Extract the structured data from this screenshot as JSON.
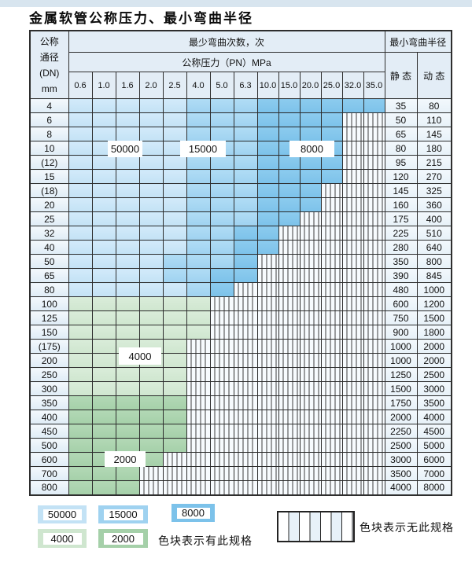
{
  "title": "金属软管公称压力、最小弯曲半径",
  "table": {
    "corner_header": [
      "公称",
      "通径",
      "(DN)",
      "mm"
    ],
    "bend_cycles_header": "最少弯曲次数，次",
    "bend_radius_header": "最小弯曲半径",
    "pressure_header": "公称压力（PN）MPa",
    "static_header": "静 态",
    "dynamic_header": "动 态",
    "pressures": [
      "0.6",
      "1.0",
      "1.6",
      "2.0",
      "2.5",
      "4.0",
      "5.0",
      "6.3",
      "10.0",
      "15.0",
      "20.0",
      "25.0",
      "32.0",
      "35.0"
    ],
    "cell_legend_key": {
      "a": "50000",
      "b": "15000",
      "c": "8000",
      "g4": "4000",
      "g2": "2000",
      "h": "无此规格"
    },
    "rows": [
      {
        "dn": "4",
        "cells": [
          "a",
          "a",
          "a",
          "a",
          "a",
          "b",
          "b",
          "b",
          "c",
          "c",
          "c",
          "c",
          "c",
          "c"
        ],
        "static": "35",
        "dynamic": "80"
      },
      {
        "dn": "6",
        "cells": [
          "a",
          "a",
          "a",
          "a",
          "a",
          "b",
          "b",
          "b",
          "c",
          "c",
          "c",
          "c",
          "h",
          "h"
        ],
        "static": "50",
        "dynamic": "110"
      },
      {
        "dn": "8",
        "cells": [
          "a",
          "a",
          "a",
          "a",
          "a",
          "b",
          "b",
          "b",
          "c",
          "c",
          "c",
          "c",
          "h",
          "h"
        ],
        "static": "65",
        "dynamic": "145"
      },
      {
        "dn": "10",
        "cells": [
          "a",
          "a",
          "a",
          "a",
          "a",
          "b",
          "b",
          "b",
          "c",
          "c",
          "c",
          "c",
          "h",
          "h"
        ],
        "static": "80",
        "dynamic": "180"
      },
      {
        "dn": "(12)",
        "cells": [
          "a",
          "a",
          "a",
          "a",
          "a",
          "b",
          "b",
          "b",
          "c",
          "c",
          "c",
          "c",
          "h",
          "h"
        ],
        "static": "95",
        "dynamic": "215"
      },
      {
        "dn": "15",
        "cells": [
          "a",
          "a",
          "a",
          "a",
          "a",
          "b",
          "b",
          "b",
          "c",
          "c",
          "c",
          "c",
          "h",
          "h"
        ],
        "static": "120",
        "dynamic": "270"
      },
      {
        "dn": "(18)",
        "cells": [
          "a",
          "a",
          "a",
          "a",
          "a",
          "b",
          "b",
          "b",
          "c",
          "c",
          "c",
          "h",
          "h",
          "h"
        ],
        "static": "145",
        "dynamic": "325"
      },
      {
        "dn": "20",
        "cells": [
          "a",
          "a",
          "a",
          "a",
          "a",
          "b",
          "b",
          "b",
          "c",
          "c",
          "c",
          "h",
          "h",
          "h"
        ],
        "static": "160",
        "dynamic": "360"
      },
      {
        "dn": "25",
        "cells": [
          "a",
          "a",
          "a",
          "a",
          "a",
          "b",
          "b",
          "b",
          "c",
          "c",
          "h",
          "h",
          "h",
          "h"
        ],
        "static": "175",
        "dynamic": "400"
      },
      {
        "dn": "32",
        "cells": [
          "a",
          "a",
          "a",
          "a",
          "a",
          "b",
          "b",
          "c",
          "c",
          "h",
          "h",
          "h",
          "h",
          "h"
        ],
        "static": "225",
        "dynamic": "510"
      },
      {
        "dn": "40",
        "cells": [
          "a",
          "a",
          "a",
          "a",
          "a",
          "b",
          "b",
          "c",
          "c",
          "h",
          "h",
          "h",
          "h",
          "h"
        ],
        "static": "280",
        "dynamic": "640"
      },
      {
        "dn": "50",
        "cells": [
          "a",
          "a",
          "a",
          "a",
          "b",
          "b",
          "b",
          "c",
          "h",
          "h",
          "h",
          "h",
          "h",
          "h"
        ],
        "static": "350",
        "dynamic": "800"
      },
      {
        "dn": "65",
        "cells": [
          "a",
          "a",
          "a",
          "a",
          "b",
          "b",
          "c",
          "c",
          "h",
          "h",
          "h",
          "h",
          "h",
          "h"
        ],
        "static": "390",
        "dynamic": "845"
      },
      {
        "dn": "80",
        "cells": [
          "a",
          "a",
          "a",
          "a",
          "a",
          "b",
          "c",
          "h",
          "h",
          "h",
          "h",
          "h",
          "h",
          "h"
        ],
        "static": "480",
        "dynamic": "1000"
      },
      {
        "dn": "100",
        "cells": [
          "g4",
          "g4",
          "g4",
          "g4",
          "g4",
          "g4",
          "h",
          "h",
          "h",
          "h",
          "h",
          "h",
          "h",
          "h"
        ],
        "static": "600",
        "dynamic": "1200"
      },
      {
        "dn": "125",
        "cells": [
          "g4",
          "g4",
          "g4",
          "g4",
          "g4",
          "g4",
          "h",
          "h",
          "h",
          "h",
          "h",
          "h",
          "h",
          "h"
        ],
        "static": "750",
        "dynamic": "1500"
      },
      {
        "dn": "150",
        "cells": [
          "g4",
          "g4",
          "g4",
          "g4",
          "g4",
          "g4",
          "h",
          "h",
          "h",
          "h",
          "h",
          "h",
          "h",
          "h"
        ],
        "static": "900",
        "dynamic": "1800"
      },
      {
        "dn": "(175)",
        "cells": [
          "g4",
          "g4",
          "g4",
          "g4",
          "g4",
          "h",
          "h",
          "h",
          "h",
          "h",
          "h",
          "h",
          "h",
          "h"
        ],
        "static": "1000",
        "dynamic": "2000"
      },
      {
        "dn": "200",
        "cells": [
          "g4",
          "g4",
          "g4",
          "g4",
          "g4",
          "h",
          "h",
          "h",
          "h",
          "h",
          "h",
          "h",
          "h",
          "h"
        ],
        "static": "1000",
        "dynamic": "2000"
      },
      {
        "dn": "250",
        "cells": [
          "g4",
          "g4",
          "g4",
          "g4",
          "g4",
          "h",
          "h",
          "h",
          "h",
          "h",
          "h",
          "h",
          "h",
          "h"
        ],
        "static": "1250",
        "dynamic": "2500"
      },
      {
        "dn": "300",
        "cells": [
          "g4",
          "g4",
          "g4",
          "g4",
          "g4",
          "h",
          "h",
          "h",
          "h",
          "h",
          "h",
          "h",
          "h",
          "h"
        ],
        "static": "1500",
        "dynamic": "3000"
      },
      {
        "dn": "350",
        "cells": [
          "g2",
          "g2",
          "g2",
          "g2",
          "g2",
          "h",
          "h",
          "h",
          "h",
          "h",
          "h",
          "h",
          "h",
          "h"
        ],
        "static": "1750",
        "dynamic": "3500"
      },
      {
        "dn": "400",
        "cells": [
          "g2",
          "g2",
          "g2",
          "g2",
          "g2",
          "h",
          "h",
          "h",
          "h",
          "h",
          "h",
          "h",
          "h",
          "h"
        ],
        "static": "2000",
        "dynamic": "4000"
      },
      {
        "dn": "450",
        "cells": [
          "g2",
          "g2",
          "g2",
          "g2",
          "g2",
          "h",
          "h",
          "h",
          "h",
          "h",
          "h",
          "h",
          "h",
          "h"
        ],
        "static": "2250",
        "dynamic": "4500"
      },
      {
        "dn": "500",
        "cells": [
          "g2",
          "g2",
          "g2",
          "g2",
          "g2",
          "h",
          "h",
          "h",
          "h",
          "h",
          "h",
          "h",
          "h",
          "h"
        ],
        "static": "2500",
        "dynamic": "5000"
      },
      {
        "dn": "600",
        "cells": [
          "g2",
          "g2",
          "g2",
          "g2",
          "h",
          "h",
          "h",
          "h",
          "h",
          "h",
          "h",
          "h",
          "h",
          "h"
        ],
        "static": "3000",
        "dynamic": "6000"
      },
      {
        "dn": "700",
        "cells": [
          "g2",
          "g2",
          "g2",
          "h",
          "h",
          "h",
          "h",
          "h",
          "h",
          "h",
          "h",
          "h",
          "h",
          "h"
        ],
        "static": "3500",
        "dynamic": "7000"
      },
      {
        "dn": "800",
        "cells": [
          "g2",
          "g2",
          "g2",
          "h",
          "h",
          "h",
          "h",
          "h",
          "h",
          "h",
          "h",
          "h",
          "h",
          "h"
        ],
        "static": "4000",
        "dynamic": "8000"
      }
    ]
  },
  "legend": {
    "items": [
      {
        "label": "50000",
        "color": "#cfe8f8"
      },
      {
        "label": "15000",
        "color": "#a5d4f0"
      },
      {
        "label": "8000",
        "color": "#74c0e8"
      },
      {
        "label": "4000",
        "color": "#d2e8d2"
      },
      {
        "label": "2000",
        "color": "#97c89e"
      }
    ],
    "has_spec_note": "色块表示有此规格",
    "no_spec_note": "色块表示无此规格"
  },
  "colors": {
    "cycle_50000": "#c3e2f5",
    "cycle_15000": "#9fd2f0",
    "cycle_8000": "#7cc2ea",
    "cycle_4000": "#cfe6cf",
    "cycle_2000": "#a5d0a9",
    "header_bg": "#e3edf6",
    "border": "#2e2e2e",
    "hatch_line": "#3d3d3d",
    "top_strip": "#d8e5ef"
  }
}
